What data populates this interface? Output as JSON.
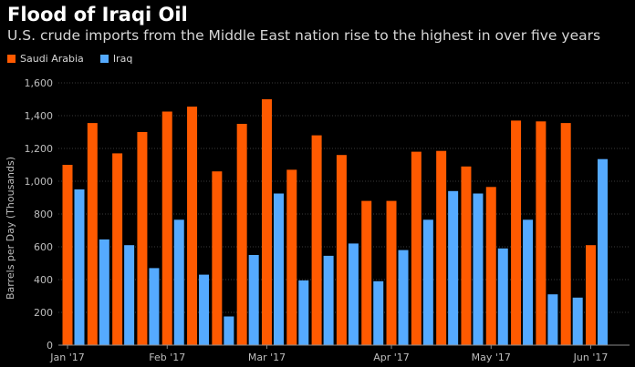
{
  "title": "Flood of Iraqi Oil",
  "subtitle": "U.S. crude imports from the Middle East nation rise to the highest in over five years",
  "colors": {
    "saudi": "#ff5a00",
    "iraq": "#55aaff",
    "grid": "#3a3a3a",
    "text": "#bdbdbd"
  },
  "legend": [
    {
      "name": "Saudi Arabia",
      "color": "#ff5a00"
    },
    {
      "name": "Iraq",
      "color": "#55aaff"
    }
  ],
  "chart_data": {
    "type": "bar",
    "ylabel": "Barrels per Day (Thousands)",
    "ylim": [
      0,
      1650
    ],
    "yticks": [
      0,
      200,
      400,
      600,
      800,
      1000,
      1200,
      1400,
      1600
    ],
    "ytick_labels": [
      "0",
      "200",
      "400",
      "600",
      "800",
      "1,000",
      "1,200",
      "1,400",
      "1,600"
    ],
    "x_tick_labels": [
      "Jan '17",
      "Feb '17",
      "Mar '17",
      "Apr '17",
      "May '17",
      "Jun '17"
    ],
    "grid": true,
    "legend_position": "top-left",
    "series": [
      {
        "name": "Saudi Arabia",
        "values": [
          1100,
          1355,
          1170,
          1300,
          1425,
          1455,
          1060,
          1350,
          1500,
          1070,
          1280,
          1160,
          880,
          880,
          1180,
          1185,
          1090,
          965,
          1370,
          1365,
          1355,
          610
        ]
      },
      {
        "name": "Iraq",
        "values": [
          950,
          645,
          610,
          470,
          765,
          430,
          175,
          550,
          925,
          395,
          545,
          620,
          390,
          580,
          765,
          940,
          925,
          590,
          765,
          310,
          290,
          1135
        ]
      }
    ]
  }
}
